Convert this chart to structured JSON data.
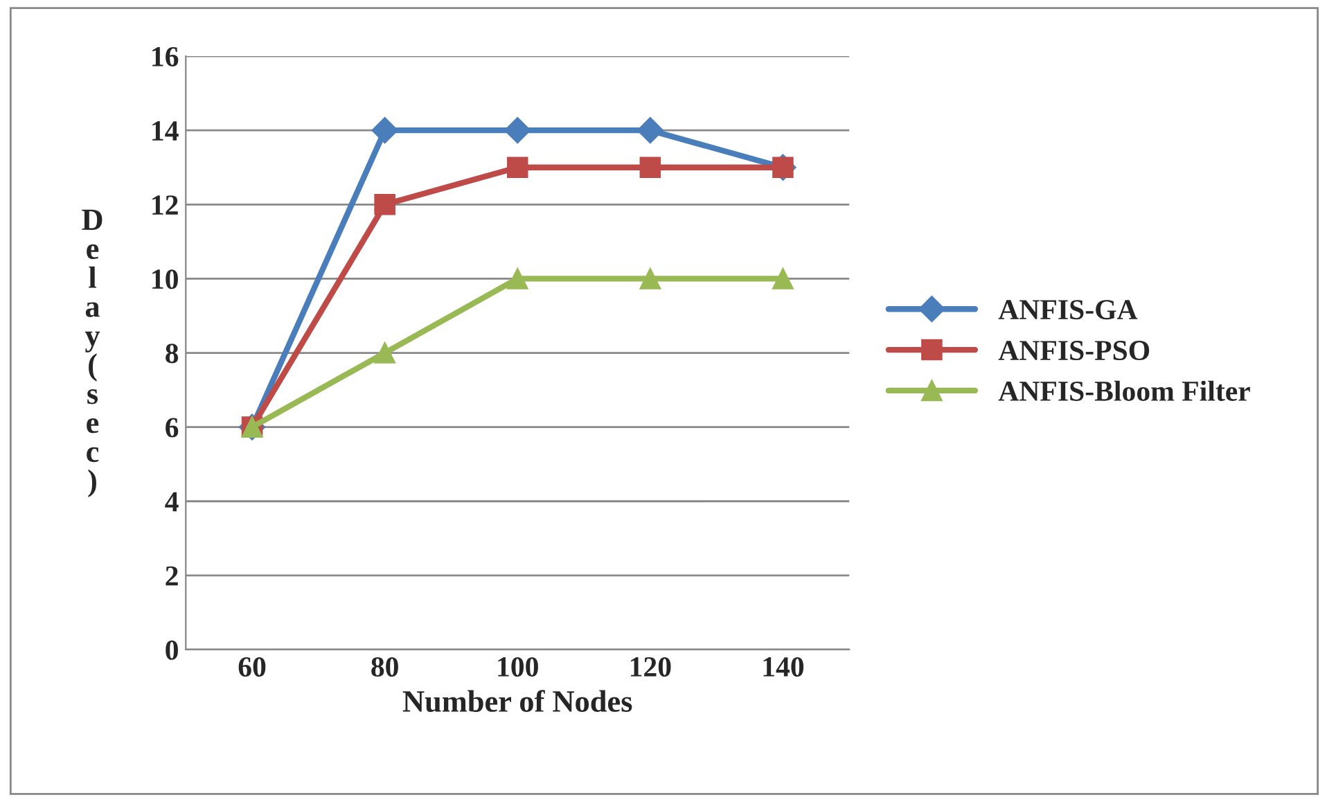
{
  "chart_data": {
    "type": "line",
    "xlabel": "Number of Nodes",
    "ylabel": "Delay(sec)",
    "categories": [
      "60",
      "80",
      "100",
      "120",
      "140"
    ],
    "series": [
      {
        "name": "ANFIS-GA",
        "color": "#4a7ebb",
        "marker": "diamond",
        "values": [
          6,
          14,
          14,
          14,
          13
        ]
      },
      {
        "name": "ANFIS-PSO",
        "color": "#be4b48",
        "marker": "square",
        "values": [
          6,
          12,
          13,
          13,
          13
        ]
      },
      {
        "name": "ANFIS-Bloom Filter",
        "color": "#98b954",
        "marker": "triangle",
        "values": [
          6,
          8,
          10,
          10,
          10
        ]
      }
    ],
    "ylim": [
      0,
      16
    ],
    "yticks": [
      0,
      2,
      4,
      6,
      8,
      10,
      12,
      14,
      16
    ],
    "grid": "y",
    "legend": "right",
    "line_style": "solid"
  }
}
